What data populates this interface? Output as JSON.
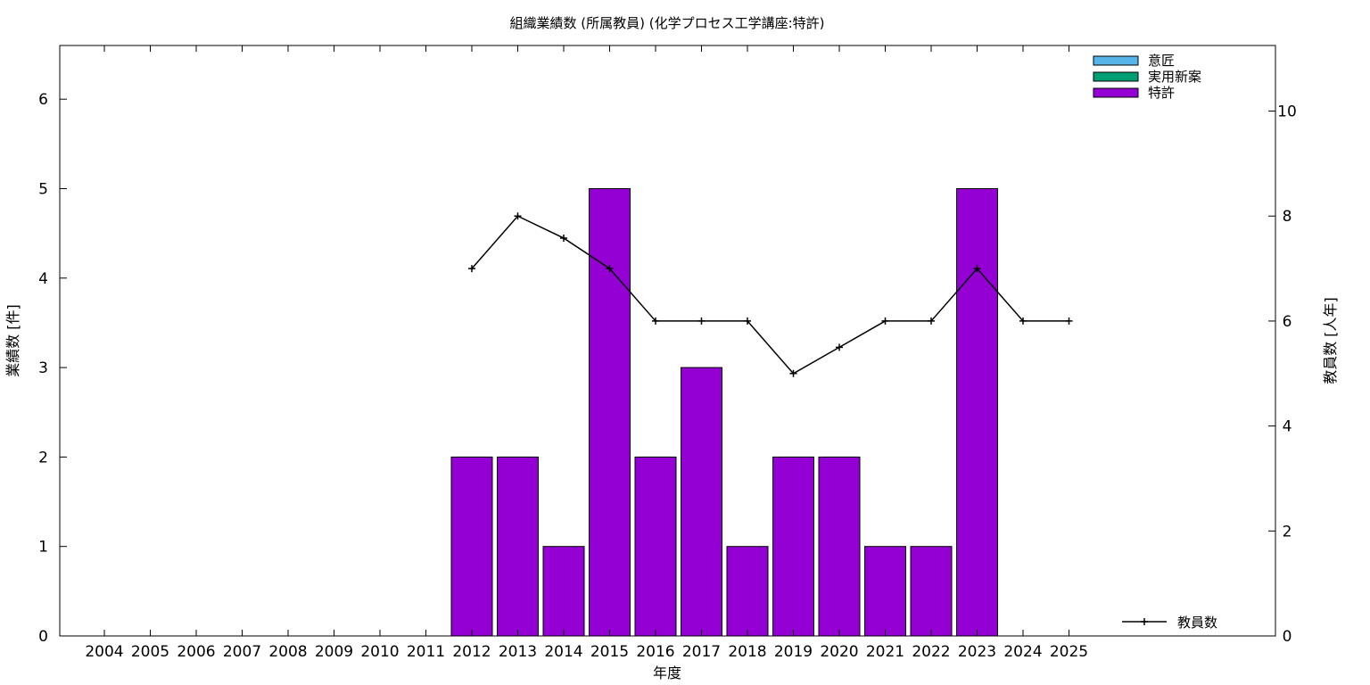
{
  "chart_data": {
    "type": "bar",
    "title": "組織業績数 (所属教員) (化学プロセス工学講座:特許)",
    "xlabel": "年度",
    "ylabel": "業績数 [件]",
    "y2label": "教員数 [人年]",
    "categories": [
      "2004",
      "2005",
      "2006",
      "2007",
      "2008",
      "2009",
      "2010",
      "2011",
      "2012",
      "2013",
      "2014",
      "2015",
      "2016",
      "2017",
      "2018",
      "2019",
      "2020",
      "2021",
      "2022",
      "2023",
      "2024",
      "2025"
    ],
    "ylim": [
      0,
      6.6
    ],
    "yticks": [
      "0",
      "1",
      "2",
      "3",
      "4",
      "5",
      "6"
    ],
    "y2lim": [
      0,
      11.25
    ],
    "y2ticks": [
      "0",
      "2",
      "4",
      "6",
      "8",
      "10"
    ],
    "bar_series": [
      {
        "name": "意匠",
        "color": "#56b4e9",
        "values": [
          0,
          0,
          0,
          0,
          0,
          0,
          0,
          0,
          0,
          0,
          0,
          0,
          0,
          0,
          0,
          0,
          0,
          0,
          0,
          0,
          0,
          0
        ]
      },
      {
        "name": "実用新案",
        "color": "#009e73",
        "values": [
          0,
          0,
          0,
          0,
          0,
          0,
          0,
          0,
          0,
          0,
          0,
          0,
          0,
          0,
          0,
          0,
          0,
          0,
          0,
          0,
          0,
          0
        ]
      },
      {
        "name": "特許",
        "color": "#9400d3",
        "values": [
          0,
          0,
          0,
          0,
          0,
          0,
          0,
          0,
          2,
          2,
          1,
          5,
          2,
          3,
          1,
          2,
          2,
          1,
          1,
          5,
          0,
          0
        ]
      }
    ],
    "line_series": {
      "name": "教員数",
      "color": "#000000",
      "axis": "y2",
      "values": [
        null,
        null,
        null,
        null,
        null,
        null,
        null,
        null,
        7,
        8,
        7.58,
        7,
        6,
        6,
        6,
        5,
        5.5,
        6,
        6,
        7,
        6,
        6
      ]
    },
    "legend": {
      "bars": "top-right",
      "line": "bottom-right"
    },
    "grid": false
  }
}
